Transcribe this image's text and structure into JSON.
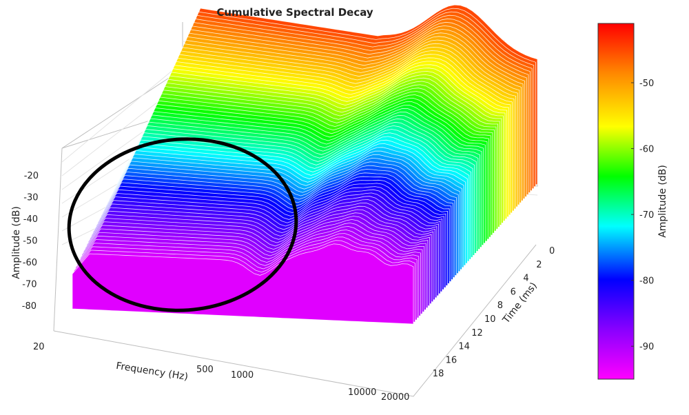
{
  "chart_data": {
    "type": "surface",
    "title": "Cumulative Spectral Decay",
    "xlabel": "Frequency (Hz)",
    "ylabel": "Time (ms)",
    "zlabel": "Amplitude (dB)",
    "colorbar_label": "Amplitude (dB)",
    "x_scale": "log",
    "x_ticks": [
      "20",
      "500",
      "1000",
      "10000",
      "20000"
    ],
    "y_ticks": [
      "0",
      "2",
      "4",
      "6",
      "8",
      "10",
      "12",
      "14",
      "16",
      "18"
    ],
    "z_ticks": [
      "-20",
      "-30",
      "-40",
      "-50",
      "-60",
      "-70",
      "-80"
    ],
    "colorbar_ticks": [
      "-50",
      "-60",
      "-70",
      "-80",
      "-90"
    ],
    "colorbar_range": [
      -95,
      -41
    ],
    "colormap": [
      "#ff00ff",
      "#8800ff",
      "#0000ff",
      "#00ffff",
      "#00ff00",
      "#ffff00",
      "#ff8800",
      "#ff0000"
    ],
    "annotation": {
      "shape": "ellipse",
      "color": "#000000"
    }
  }
}
